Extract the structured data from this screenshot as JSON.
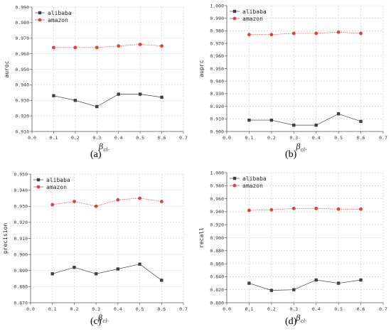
{
  "chart_data": [
    {
      "type": "line",
      "caption": "a",
      "title": "",
      "xlabel": "βcl-",
      "ylabel": "auroc",
      "x": [
        0.1,
        0.2,
        0.3,
        0.4,
        0.5,
        0.6
      ],
      "xlim": [
        0.0,
        0.7
      ],
      "ylim": [
        0.91,
        0.99
      ],
      "yticks": [
        0.91,
        0.92,
        0.93,
        0.94,
        0.95,
        0.96,
        0.97,
        0.98,
        0.99
      ],
      "ytick_labels": [
        "0.910",
        "0.920",
        "0.930",
        "0.940",
        "0.950",
        "0.960",
        "0.970",
        "0.980",
        "0.990"
      ],
      "xticks": [
        0.0,
        0.1,
        0.2,
        0.3,
        0.4,
        0.5,
        0.6,
        0.7
      ],
      "xtick_labels": [
        "0.0",
        "0.1",
        "0.2",
        "0.3",
        "0.4",
        "0.5",
        "0.6",
        "0.7"
      ],
      "grid": true,
      "legend_position": "top-left",
      "series": [
        {
          "name": "alibaba",
          "color": "#404040",
          "marker": "square",
          "values": [
            0.933,
            0.93,
            0.926,
            0.934,
            0.934,
            0.932
          ]
        },
        {
          "name": "amazon",
          "color": "#e0413b",
          "marker": "circle",
          "values": [
            0.964,
            0.964,
            0.964,
            0.965,
            0.966,
            0.965
          ]
        }
      ]
    },
    {
      "type": "line",
      "caption": "b",
      "title": "",
      "xlabel": "βcl-",
      "ylabel": "auprc",
      "x": [
        0.1,
        0.2,
        0.3,
        0.4,
        0.5,
        0.6
      ],
      "xlim": [
        0.0,
        0.7
      ],
      "ylim": [
        0.9,
        1.0
      ],
      "yticks": [
        0.9,
        0.91,
        0.92,
        0.93,
        0.94,
        0.95,
        0.96,
        0.97,
        0.98,
        0.99,
        1.0
      ],
      "ytick_labels": [
        "0.900",
        "0.910",
        "0.920",
        "0.930",
        "0.940",
        "0.950",
        "0.960",
        "0.970",
        "0.980",
        "0.990",
        "1.000"
      ],
      "xticks": [
        0.0,
        0.1,
        0.2,
        0.3,
        0.4,
        0.5,
        0.6,
        0.7
      ],
      "xtick_labels": [
        "0.0",
        "0.1",
        "0.2",
        "0.3",
        "0.4",
        "0.5",
        "0.6",
        "0.7"
      ],
      "grid": true,
      "legend_position": "top-left",
      "series": [
        {
          "name": "alibaba",
          "color": "#404040",
          "marker": "square",
          "values": [
            0.909,
            0.909,
            0.905,
            0.905,
            0.914,
            0.908
          ]
        },
        {
          "name": "amazon",
          "color": "#e0413b",
          "marker": "circle",
          "values": [
            0.977,
            0.977,
            0.978,
            0.978,
            0.979,
            0.978
          ]
        }
      ]
    },
    {
      "type": "line",
      "caption": "c",
      "title": "",
      "xlabel": "βcl-",
      "ylabel": "precision",
      "x": [
        0.1,
        0.2,
        0.3,
        0.4,
        0.5,
        0.6
      ],
      "xlim": [
        0.0,
        0.7
      ],
      "ylim": [
        0.87,
        0.95
      ],
      "yticks": [
        0.87,
        0.88,
        0.89,
        0.9,
        0.91,
        0.92,
        0.93,
        0.94,
        0.95
      ],
      "ytick_labels": [
        "0.870",
        "0.880",
        "0.890",
        "0.900",
        "0.910",
        "0.920",
        "0.930",
        "0.940",
        "0.950"
      ],
      "xticks": [
        0.0,
        0.1,
        0.2,
        0.3,
        0.4,
        0.5,
        0.6,
        0.7
      ],
      "xtick_labels": [
        "0.0",
        "0.1",
        "0.2",
        "0.3",
        "0.4",
        "0.5",
        "0.6",
        "0.7"
      ],
      "grid": true,
      "legend_position": "top-left",
      "series": [
        {
          "name": "alibaba",
          "color": "#404040",
          "marker": "square",
          "values": [
            0.888,
            0.892,
            0.888,
            0.891,
            0.894,
            0.884
          ]
        },
        {
          "name": "amazon",
          "color": "#e0413b",
          "marker": "circle",
          "values": [
            0.931,
            0.933,
            0.93,
            0.934,
            0.935,
            0.933
          ]
        }
      ]
    },
    {
      "type": "line",
      "caption": "d",
      "title": "",
      "xlabel": "βcl-",
      "ylabel": "recall",
      "x": [
        0.1,
        0.2,
        0.3,
        0.4,
        0.5,
        0.6
      ],
      "xlim": [
        0.0,
        0.7
      ],
      "ylim": [
        0.8,
        1.0
      ],
      "yticks": [
        0.8,
        0.82,
        0.84,
        0.86,
        0.88,
        0.9,
        0.92,
        0.94,
        0.96,
        0.98,
        1.0
      ],
      "ytick_labels": [
        "0.800",
        "0.820",
        "0.840",
        "0.860",
        "0.880",
        "0.900",
        "0.920",
        "0.940",
        "0.960",
        "0.980",
        "1.000"
      ],
      "xticks": [
        0.0,
        0.1,
        0.2,
        0.3,
        0.4,
        0.5,
        0.6,
        0.7
      ],
      "xtick_labels": [
        "0.0",
        "0.1",
        "0.2",
        "0.3",
        "0.4",
        "0.5",
        "0.6",
        "0.7"
      ],
      "grid": true,
      "legend_position": "top-left",
      "series": [
        {
          "name": "alibaba",
          "color": "#404040",
          "marker": "square",
          "values": [
            0.83,
            0.819,
            0.82,
            0.835,
            0.83,
            0.835
          ]
        },
        {
          "name": "amazon",
          "color": "#e0413b",
          "marker": "circle",
          "values": [
            0.942,
            0.943,
            0.945,
            0.945,
            0.944,
            0.944
          ]
        }
      ]
    }
  ],
  "captions": [
    "(a)",
    "(b)",
    "(c)",
    "(d)"
  ]
}
